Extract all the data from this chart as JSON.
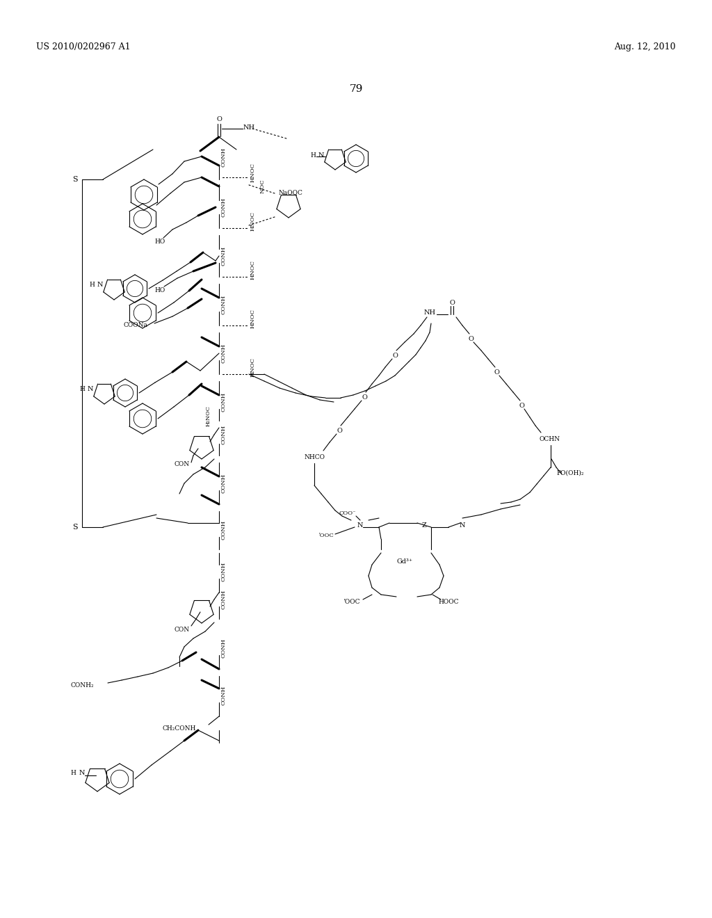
{
  "background_color": "#ffffff",
  "patent_number": "US 2010/0202967 A1",
  "patent_date": "Aug. 12, 2010",
  "page_number": "79"
}
